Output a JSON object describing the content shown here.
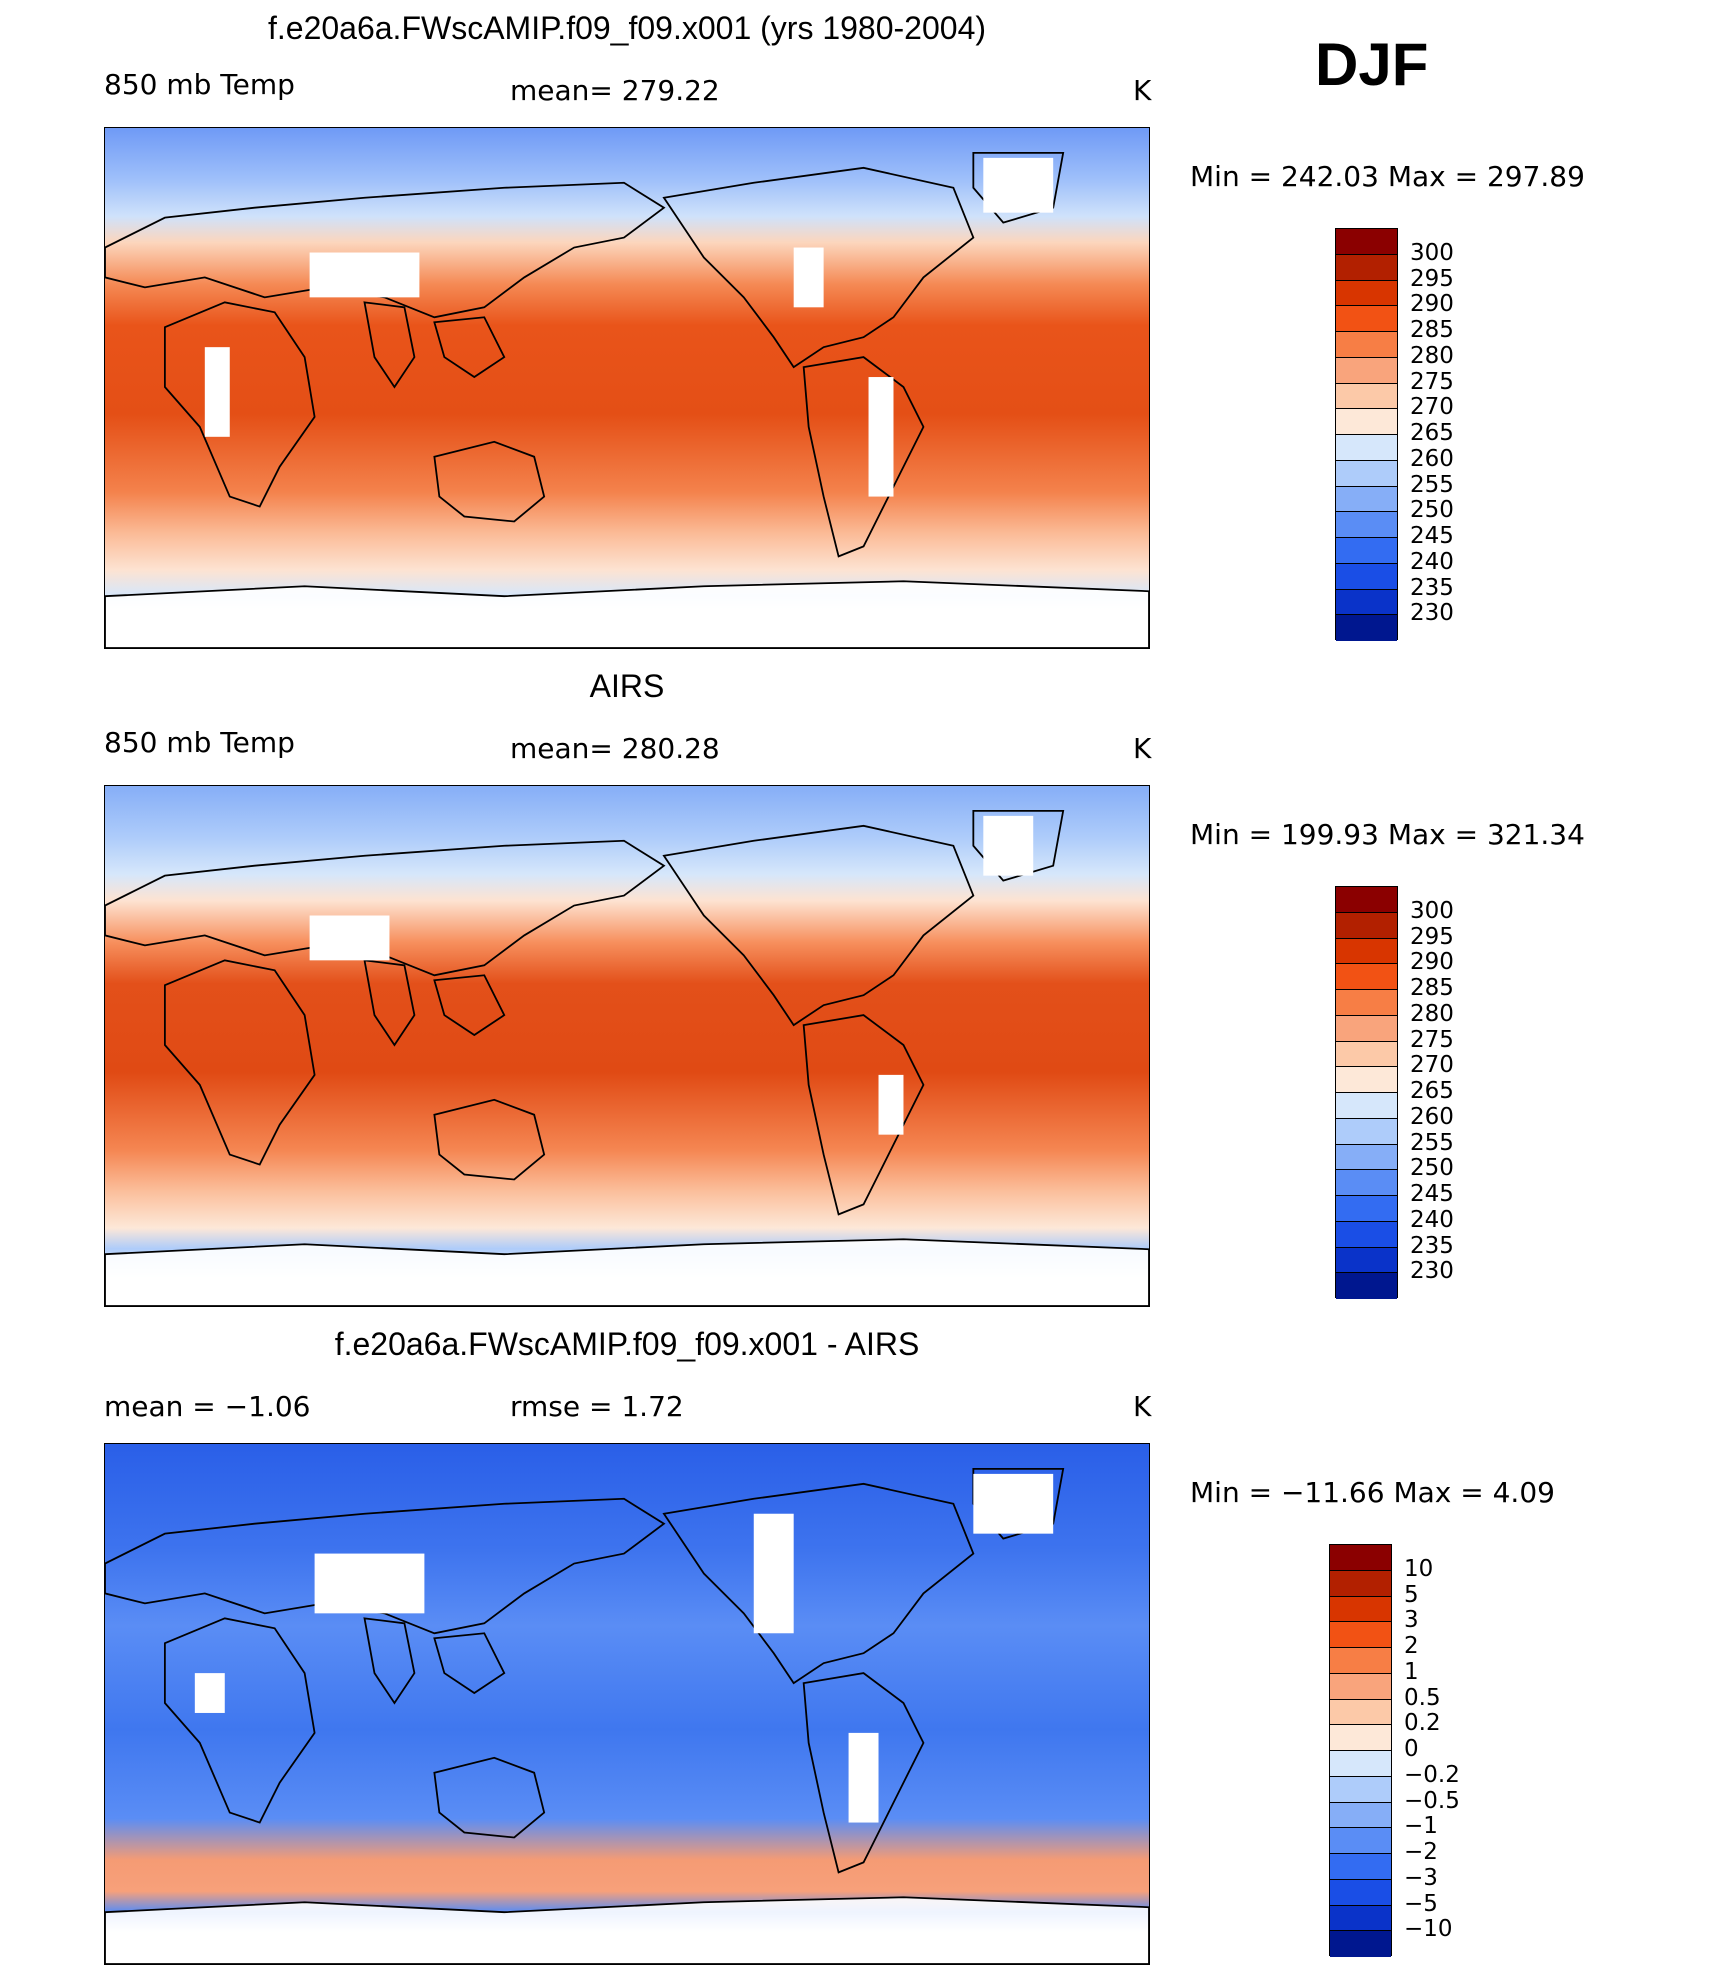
{
  "season": "DJF",
  "panels": [
    {
      "title": "f.e20a6a.FWscAMIP.f09_f09.x001 (yrs 1980-2004)",
      "left_label": "850 mb Temp",
      "center_label": "mean= 279.22",
      "units": "K",
      "min_max": "Min = 242.03 Max = 297.89",
      "variant": "model"
    },
    {
      "title": "AIRS",
      "left_label": "850 mb Temp",
      "center_label": "mean= 280.28",
      "units": "K",
      "min_max": "Min = 199.93 Max = 321.34",
      "variant": "obs"
    },
    {
      "title": "f.e20a6a.FWscAMIP.f09_f09.x001 - AIRS",
      "left_label": "mean =   −1.06",
      "center_label": "rmse =    1.72",
      "units": "K",
      "min_max": "Min = −11.66 Max =     4.09",
      "variant": "diff"
    }
  ],
  "colorbars": [
    {
      "labels": [
        "300",
        "295",
        "290",
        "285",
        "280",
        "275",
        "270",
        "265",
        "260",
        "255",
        "250",
        "245",
        "240",
        "235",
        "230"
      ],
      "colors": [
        "#8b0000",
        "#b22000",
        "#d83500",
        "#f25214",
        "#f77e45",
        "#f9a47c",
        "#fcc9a8",
        "#fde8d8",
        "#d6e7fb",
        "#aeccfa",
        "#86aef7",
        "#5a8df5",
        "#336cf2",
        "#1a4ee6",
        "#0a33c9",
        "#00178f"
      ]
    },
    {
      "labels": [
        "300",
        "295",
        "290",
        "285",
        "280",
        "275",
        "270",
        "265",
        "260",
        "255",
        "250",
        "245",
        "240",
        "235",
        "230"
      ],
      "colors": [
        "#8b0000",
        "#b22000",
        "#d83500",
        "#f25214",
        "#f77e45",
        "#f9a47c",
        "#fcc9a8",
        "#fde8d8",
        "#d6e7fb",
        "#aeccfa",
        "#86aef7",
        "#5a8df5",
        "#336cf2",
        "#1a4ee6",
        "#0a33c9",
        "#00178f"
      ]
    },
    {
      "labels": [
        "10",
        "5",
        "3",
        "2",
        "1",
        "0.5",
        "0.2",
        "0",
        "−0.2",
        "−0.5",
        "−1",
        "−2",
        "−3",
        "−5",
        "−10"
      ],
      "colors": [
        "#8b0000",
        "#b22000",
        "#d83500",
        "#f25214",
        "#f77e45",
        "#f9a47c",
        "#fcc9a8",
        "#fde8d8",
        "#d6e7fb",
        "#aeccfa",
        "#86aef7",
        "#5a8df5",
        "#336cf2",
        "#1a4ee6",
        "#0a33c9",
        "#00178f"
      ]
    }
  ]
}
